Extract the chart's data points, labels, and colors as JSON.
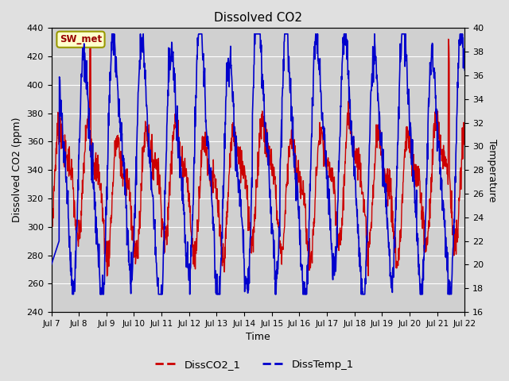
{
  "title": "Dissolved CO2",
  "xlabel": "Time",
  "ylabel_left": "Dissolved CO2 (ppm)",
  "ylabel_right": "Temperature",
  "annotation": "SW_met",
  "legend": [
    "DissCO2_1",
    "DissTemp_1"
  ],
  "color_co2": "#cc0000",
  "color_temp": "#0000cc",
  "ylim_left": [
    240,
    440
  ],
  "ylim_right": [
    16,
    40
  ],
  "yticks_left": [
    240,
    260,
    280,
    300,
    320,
    340,
    360,
    380,
    400,
    420,
    440
  ],
  "yticks_right": [
    16,
    18,
    20,
    22,
    24,
    26,
    28,
    30,
    32,
    34,
    36,
    38,
    40
  ],
  "xtick_labels": [
    "Jul 7",
    "Jul 8",
    "Jul 9",
    "Jul 10",
    "Jul 11",
    "Jul 12",
    "Jul 13",
    "Jul 14",
    "Jul 15",
    "Jul 16",
    "Jul 17",
    "Jul 18",
    "Jul 19",
    "Jul 20",
    "Jul 21",
    "Jul 22"
  ],
  "bg_color": "#e0e0e0",
  "plot_bg_color": "#d0d0d0",
  "grid_color": "#ffffff",
  "figsize": [
    6.4,
    4.8
  ],
  "dpi": 100
}
